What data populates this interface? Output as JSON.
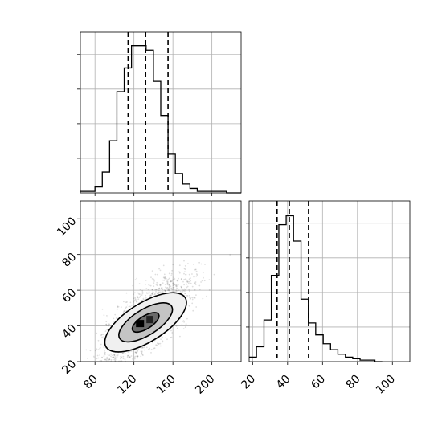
{
  "chart_data": [
    {
      "type": "histogram",
      "panel": "marginal-x",
      "bin_edges": [
        65,
        72.5,
        80,
        87.5,
        95,
        102.5,
        110,
        117.5,
        125,
        132.5,
        140,
        147.5,
        155,
        162.5,
        170,
        177.5,
        185,
        192.5,
        200,
        207.5,
        215,
        222.5,
        230
      ],
      "counts": [
        0.01,
        0.01,
        0.04,
        0.14,
        0.35,
        0.68,
        0.84,
        0.99,
        0.99,
        0.96,
        0.75,
        0.52,
        0.26,
        0.13,
        0.06,
        0.03,
        0.01,
        0.01,
        0.01,
        0.01,
        0.0,
        0.0
      ],
      "quantile_lines": [
        114,
        132,
        155
      ],
      "xlim": [
        65,
        230
      ],
      "ylim": [
        0,
        1.08
      ],
      "grid": true,
      "y_tick_fractions": [
        0.25,
        0.5,
        0.75,
        1.0
      ]
    },
    {
      "type": "scatter",
      "panel": "joint",
      "contour_levels": 3,
      "x_ticks": [
        "80",
        "120",
        "160",
        "200"
      ],
      "y_ticks": [
        "20",
        "40",
        "60",
        "80",
        "100"
      ],
      "xlim": [
        65,
        230
      ],
      "ylim": [
        20,
        110
      ],
      "grid": true,
      "center": [
        132,
        42
      ],
      "points_note": ""
    },
    {
      "type": "histogram",
      "panel": "marginal-y",
      "bin_edges": [
        18,
        22.2,
        26.5,
        30.7,
        35,
        39.2,
        43.4,
        47.7,
        51.9,
        56.1,
        60.4,
        64.6,
        68.8,
        73.1,
        77.3,
        81.5,
        85.8,
        90,
        94.2
      ],
      "counts": [
        0.03,
        0.1,
        0.28,
        0.58,
        0.92,
        0.98,
        0.81,
        0.42,
        0.26,
        0.18,
        0.12,
        0.08,
        0.05,
        0.03,
        0.02,
        0.01,
        0.01,
        0.0
      ],
      "quantile_lines": [
        34,
        41,
        52
      ],
      "xlim": [
        18,
        110
      ],
      "ylim": [
        0,
        1.08
      ],
      "x_ticks": [
        "20",
        "40",
        "60",
        "80",
        "100"
      ],
      "grid": true
    }
  ]
}
